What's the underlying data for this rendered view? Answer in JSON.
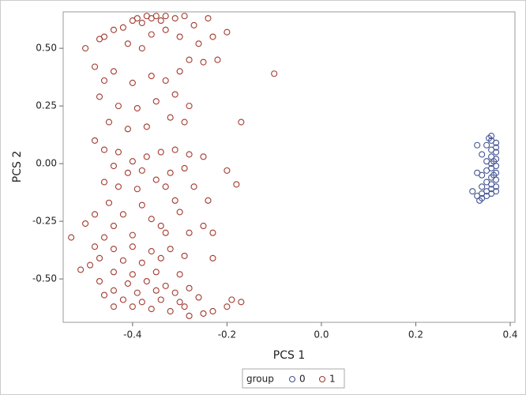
{
  "chart_data": {
    "type": "scatter",
    "x_label": "PCS 1",
    "y_label": "PCS 2",
    "legend_title": "group",
    "xlim": [
      -0.547,
      0.41
    ],
    "ylim": [
      -0.688,
      0.658
    ],
    "xticks": [
      -0.4,
      -0.2,
      {
        "value": 0,
        "label": "0.0"
      },
      0.2,
      0.4
    ],
    "yticks": [
      {
        "value": 0.5,
        "label": "0.50"
      },
      0.25,
      {
        "value": 0,
        "label": "0.00"
      },
      -0.25,
      {
        "value": -0.5,
        "label": "-0.50"
      }
    ],
    "series": [
      {
        "name": "0",
        "color": "#445694",
        "x": [
          0.36,
          0.36,
          0.37,
          0.35,
          0.37,
          0.36,
          0.37,
          0.34,
          0.36,
          0.37,
          0.35,
          0.36,
          0.37,
          0.36,
          0.35,
          0.37,
          0.34,
          0.36,
          0.33,
          0.37,
          0.35,
          0.36,
          0.37,
          0.34,
          0.36,
          0.35,
          0.37,
          0.34,
          0.36,
          0.32,
          0.33,
          0.34,
          0.335,
          0.35,
          0.33,
          0.355,
          0.365,
          0.365
        ],
        "values": [
          0.12,
          0.1,
          0.09,
          0.08,
          0.07,
          0.06,
          0.05,
          0.04,
          0.03,
          0.02,
          0.01,
          0.0,
          -0.01,
          -0.02,
          -0.03,
          -0.04,
          -0.05,
          -0.06,
          -0.04,
          -0.07,
          -0.08,
          -0.09,
          -0.1,
          -0.1,
          -0.11,
          -0.12,
          -0.12,
          -0.13,
          -0.13,
          -0.12,
          -0.14,
          -0.15,
          -0.16,
          -0.14,
          0.08,
          0.11,
          0.01,
          -0.05
        ]
      },
      {
        "name": "1",
        "color": "#a23a2e",
        "x": [
          -0.4,
          -0.39,
          -0.38,
          -0.37,
          -0.36,
          -0.35,
          -0.34,
          -0.33,
          -0.31,
          -0.29,
          -0.24,
          -0.2,
          -0.23,
          -0.42,
          -0.44,
          -0.46,
          -0.47,
          -0.5,
          -0.41,
          -0.36,
          -0.33,
          -0.27,
          -0.3,
          -0.38,
          -0.26,
          -0.25,
          -0.28,
          -0.22,
          -0.1,
          -0.17,
          -0.48,
          -0.46,
          -0.44,
          -0.4,
          -0.36,
          -0.33,
          -0.3,
          -0.31,
          -0.47,
          -0.43,
          -0.39,
          -0.35,
          -0.28,
          -0.45,
          -0.41,
          -0.37,
          -0.32,
          -0.29,
          -0.48,
          -0.46,
          -0.43,
          -0.4,
          -0.37,
          -0.34,
          -0.31,
          -0.28,
          -0.25,
          -0.44,
          -0.41,
          -0.38,
          -0.35,
          -0.32,
          -0.29,
          -0.2,
          -0.18,
          -0.46,
          -0.43,
          -0.39,
          -0.33,
          -0.27,
          -0.45,
          -0.38,
          -0.31,
          -0.24,
          -0.48,
          -0.42,
          -0.36,
          -0.3,
          -0.5,
          -0.44,
          -0.34,
          -0.25,
          -0.46,
          -0.4,
          -0.33,
          -0.28,
          -0.23,
          -0.53,
          -0.48,
          -0.44,
          -0.4,
          -0.36,
          -0.32,
          -0.47,
          -0.42,
          -0.38,
          -0.34,
          -0.29,
          -0.23,
          -0.49,
          -0.44,
          -0.4,
          -0.35,
          -0.3,
          -0.51,
          -0.47,
          -0.41,
          -0.37,
          -0.33,
          -0.28,
          -0.44,
          -0.39,
          -0.35,
          -0.31,
          -0.46,
          -0.42,
          -0.38,
          -0.34,
          -0.3,
          -0.26,
          -0.4,
          -0.36,
          -0.32,
          -0.29,
          -0.25,
          -0.23,
          -0.2,
          -0.17,
          -0.19,
          -0.44,
          -0.28
        ],
        "values": [
          0.62,
          0.63,
          0.61,
          0.64,
          0.63,
          0.64,
          0.62,
          0.64,
          0.63,
          0.64,
          0.63,
          0.57,
          0.55,
          0.59,
          0.58,
          0.55,
          0.54,
          0.5,
          0.52,
          0.56,
          0.58,
          0.6,
          0.55,
          0.5,
          0.52,
          0.44,
          0.45,
          0.45,
          0.39,
          0.18,
          0.42,
          0.36,
          0.4,
          0.35,
          0.38,
          0.36,
          0.4,
          0.3,
          0.29,
          0.25,
          0.24,
          0.27,
          0.25,
          0.18,
          0.15,
          0.16,
          0.2,
          0.18,
          0.1,
          0.06,
          0.05,
          0.01,
          0.03,
          0.05,
          0.06,
          0.04,
          0.03,
          -0.01,
          -0.04,
          -0.03,
          -0.07,
          -0.04,
          -0.02,
          -0.03,
          -0.09,
          -0.08,
          -0.1,
          -0.11,
          -0.1,
          -0.1,
          -0.17,
          -0.18,
          -0.16,
          -0.16,
          -0.22,
          -0.22,
          -0.24,
          -0.21,
          -0.26,
          -0.27,
          -0.27,
          -0.27,
          -0.32,
          -0.31,
          -0.3,
          -0.3,
          -0.3,
          -0.32,
          -0.36,
          -0.37,
          -0.36,
          -0.38,
          -0.37,
          -0.41,
          -0.42,
          -0.43,
          -0.41,
          -0.4,
          -0.41,
          -0.44,
          -0.47,
          -0.48,
          -0.47,
          -0.48,
          -0.46,
          -0.51,
          -0.52,
          -0.51,
          -0.53,
          -0.54,
          -0.55,
          -0.56,
          -0.55,
          -0.56,
          -0.57,
          -0.59,
          -0.6,
          -0.59,
          -0.6,
          -0.58,
          -0.62,
          -0.63,
          -0.64,
          -0.62,
          -0.65,
          -0.64,
          -0.62,
          -0.6,
          -0.59,
          -0.62,
          -0.66
        ]
      }
    ]
  }
}
